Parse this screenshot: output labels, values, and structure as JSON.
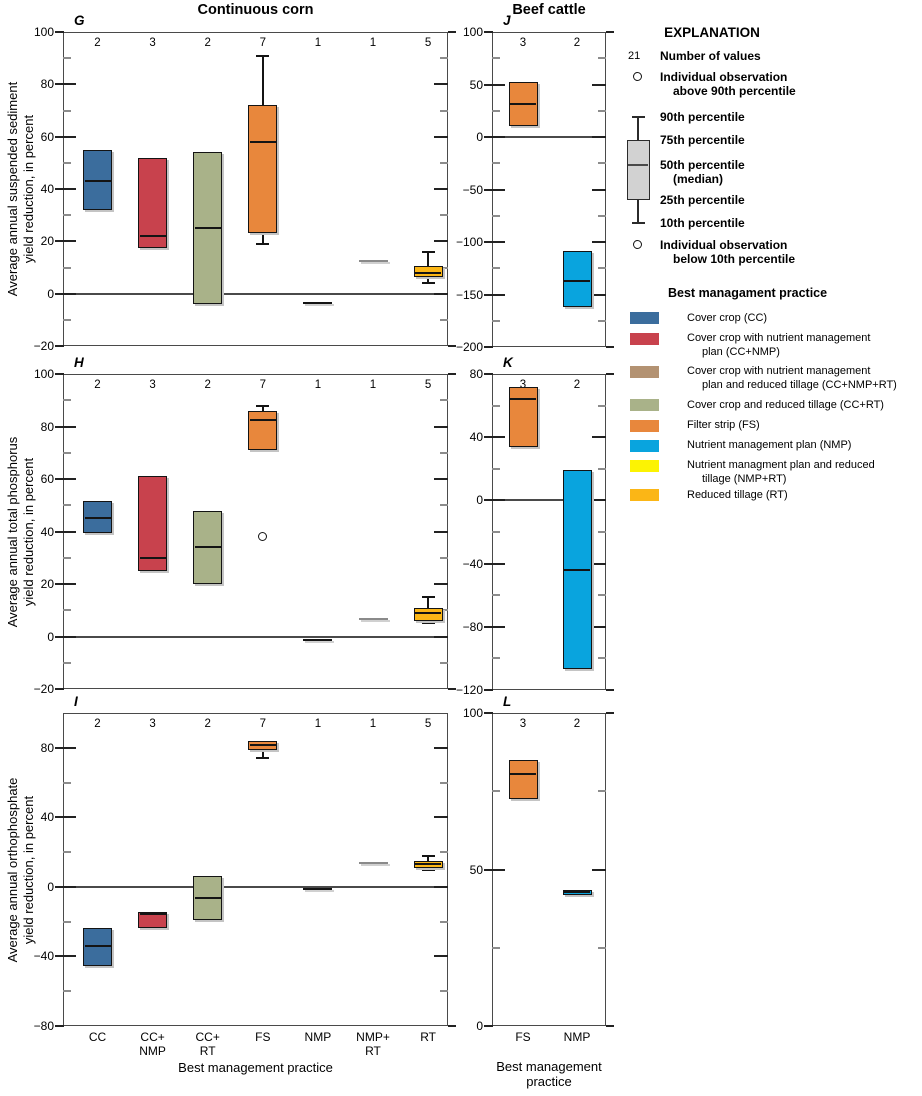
{
  "figure_titles": {
    "left_column": "Continuous corn",
    "right_column": "Beef cattle"
  },
  "legend": {
    "title": "EXPLANATION",
    "number_symbol": "21",
    "number_label": "Number of values",
    "above_lines": [
      "Individual observation",
      "above 90th percentile"
    ],
    "p90": "90th percentile",
    "p75": "75th percentile",
    "p50": "50th percentile",
    "p50_sub": "(median)",
    "p25": "25th percentile",
    "p10": "10th percentile",
    "below_lines": [
      "Individual observation",
      "below 10th percentile"
    ],
    "box_fill": "#D2D2D2",
    "bmp_header": "Best managament practice",
    "items": [
      {
        "practice": "CC",
        "lines": [
          "Cover crop (CC)"
        ]
      },
      {
        "practice": "CC+NMP",
        "lines": [
          "Cover crop with nutrient management",
          "plan (CC+NMP)"
        ]
      },
      {
        "practice": "CC+NMP+RT",
        "lines": [
          "Cover crop with nutrient management",
          "plan and reduced tillage (CC+NMP+RT)"
        ]
      },
      {
        "practice": "CC+RT",
        "lines": [
          "Cover crop and reduced tillage (CC+RT)"
        ]
      },
      {
        "practice": "FS",
        "lines": [
          "Filter strip (FS)"
        ]
      },
      {
        "practice": "NMP",
        "lines": [
          "Nutrient management plan (NMP)"
        ]
      },
      {
        "practice": "NMP+RT",
        "lines": [
          "Nutrient managment plan and reduced",
          "tillage (NMP+RT)"
        ]
      },
      {
        "practice": "RT",
        "lines": [
          "Reduced tillage (RT)"
        ]
      }
    ]
  },
  "chart_data": {
    "type": "boxplot",
    "practice_colors": {
      "CC": "#3B6D9D",
      "CC+NMP": "#C8424D",
      "CC+NMP+RT": "#B39272",
      "CC+RT": "#A9B289",
      "FS": "#E8873C",
      "NMP": "#09A4DE",
      "NMP+RT": "#FCF303",
      "RT": "#FBB616"
    },
    "columns": [
      {
        "title": "Continuous corn",
        "xlabel": "Best management practice",
        "categories": [
          "CC",
          "CC+NMP",
          "CC+RT",
          "FS",
          "NMP",
          "NMP+RT",
          "RT"
        ],
        "category_display": [
          [
            "CC"
          ],
          [
            "CC+",
            "NMP"
          ],
          [
            "CC+",
            "RT"
          ],
          [
            "FS"
          ],
          [
            "NMP"
          ],
          [
            "NMP+",
            "RT"
          ],
          [
            "RT"
          ]
        ]
      },
      {
        "title": "Beef cattle",
        "xlabel_lines": [
          "Best management",
          "practice"
        ],
        "categories": [
          "FS",
          "NMP"
        ],
        "category_display": [
          [
            "FS"
          ],
          [
            "NMP"
          ]
        ]
      }
    ],
    "panels": [
      {
        "letter": "G",
        "column": 0,
        "ylabel_lines": [
          "Average annual suspended sediment",
          "yield reduction, in percent"
        ],
        "ylim": [
          -20,
          100
        ],
        "label_step": 20,
        "minor_step": 10,
        "counts": [
          2,
          3,
          2,
          7,
          1,
          1,
          5
        ],
        "boxes": [
          {
            "category": "CC",
            "n": 2,
            "q1": 32,
            "median": 43,
            "q3": 55
          },
          {
            "category": "CC+NMP",
            "n": 3,
            "q1": 17.5,
            "median": 22,
            "q3": 52
          },
          {
            "category": "CC+RT",
            "n": 2,
            "q1": -4,
            "median": 25,
            "q3": 54
          },
          {
            "category": "FS",
            "n": 7,
            "q1": 23,
            "median": 58,
            "q3": 72,
            "whisker_low": 19,
            "whisker_high": 91
          },
          {
            "category": "NMP",
            "n": 1,
            "value": -3.5
          },
          {
            "category": "NMP+RT",
            "n": 1,
            "value": 12.5,
            "muted": true
          },
          {
            "category": "RT",
            "n": 5,
            "q1": 6.5,
            "median": 8,
            "q3": 10.5,
            "whisker_low": 4,
            "whisker_high": 16
          }
        ]
      },
      {
        "letter": "H",
        "column": 0,
        "ylabel_lines": [
          "Average annual total phosphorus",
          "yield reduction, in percent"
        ],
        "ylim": [
          -20,
          100
        ],
        "label_step": 20,
        "minor_step": 10,
        "counts": [
          2,
          3,
          2,
          7,
          1,
          1,
          5
        ],
        "boxes": [
          {
            "category": "CC",
            "n": 2,
            "q1": 39.5,
            "median": 45,
            "q3": 51.5
          },
          {
            "category": "CC+NMP",
            "n": 3,
            "q1": 25,
            "median": 30,
            "q3": 61
          },
          {
            "category": "CC+RT",
            "n": 2,
            "q1": 20,
            "median": 34,
            "q3": 48
          },
          {
            "category": "FS",
            "n": 7,
            "q1": 71,
            "median": 82.5,
            "q3": 86,
            "whisker_high": 88,
            "outliers_low": [
              38
            ]
          },
          {
            "category": "NMP",
            "n": 1,
            "value": -1.5
          },
          {
            "category": "NMP+RT",
            "n": 1,
            "value": 6.5,
            "muted": true
          },
          {
            "category": "RT",
            "n": 5,
            "q1": 6,
            "median": 9,
            "q3": 11,
            "whisker_low": 5,
            "whisker_high": 15
          }
        ]
      },
      {
        "letter": "I",
        "column": 0,
        "ylabel_lines": [
          "Average annual orthophosphate",
          "yield reduction, in percent"
        ],
        "ylim": [
          -80,
          100
        ],
        "label_range": [
          -80,
          80
        ],
        "label_step": 40,
        "minor_step": 20,
        "counts": [
          2,
          3,
          2,
          7,
          1,
          1,
          5
        ],
        "boxes": [
          {
            "category": "CC",
            "n": 2,
            "q1": -45.5,
            "median": -34,
            "q3": -23.5
          },
          {
            "category": "CC+NMP",
            "n": 3,
            "q1": -23.5,
            "median": -15.5,
            "q3": -14.5
          },
          {
            "category": "CC+RT",
            "n": 2,
            "q1": -19,
            "median": -6.5,
            "q3": 6
          },
          {
            "category": "FS",
            "n": 7,
            "q1": 79,
            "median": 81.5,
            "q3": 84,
            "whisker_low": 74
          },
          {
            "category": "NMP",
            "n": 1,
            "value": -1
          },
          {
            "category": "NMP+RT",
            "n": 1,
            "value": 14,
            "muted": true
          },
          {
            "category": "RT",
            "n": 5,
            "q1": 11,
            "median": 13,
            "q3": 15,
            "whisker_low": 10,
            "whisker_high": 17.5
          }
        ]
      },
      {
        "letter": "J",
        "column": 1,
        "ylabel_lines": [],
        "ylim": [
          -200,
          100
        ],
        "label_step": 50,
        "minor_step": 25,
        "counts": [
          3,
          2
        ],
        "boxes": [
          {
            "category": "FS",
            "n": 3,
            "q1": 10.5,
            "median": 31.5,
            "q3": 52.5
          },
          {
            "category": "NMP",
            "n": 2,
            "q1": -162,
            "median": -137,
            "q3": -109
          }
        ]
      },
      {
        "letter": "K",
        "column": 1,
        "ylabel_lines": [],
        "ylim": [
          -120,
          80
        ],
        "label_step": 40,
        "minor_step": 20,
        "counts": [
          3,
          2
        ],
        "boxes": [
          {
            "category": "FS",
            "n": 3,
            "q1": 34,
            "median": 64,
            "q3": 72
          },
          {
            "category": "NMP",
            "n": 2,
            "q1": -107,
            "median": -44,
            "q3": 19
          }
        ]
      },
      {
        "letter": "L",
        "column": 1,
        "ylabel_lines": [],
        "ylim": [
          0,
          100
        ],
        "label_step": 50,
        "minor_step": 25,
        "counts": [
          3,
          2
        ],
        "boxes": [
          {
            "category": "FS",
            "n": 3,
            "q1": 72.5,
            "median": 80.5,
            "q3": 85
          },
          {
            "category": "NMP",
            "n": 2,
            "q1": 42,
            "median": 42.7,
            "q3": 43.5
          }
        ]
      }
    ]
  }
}
